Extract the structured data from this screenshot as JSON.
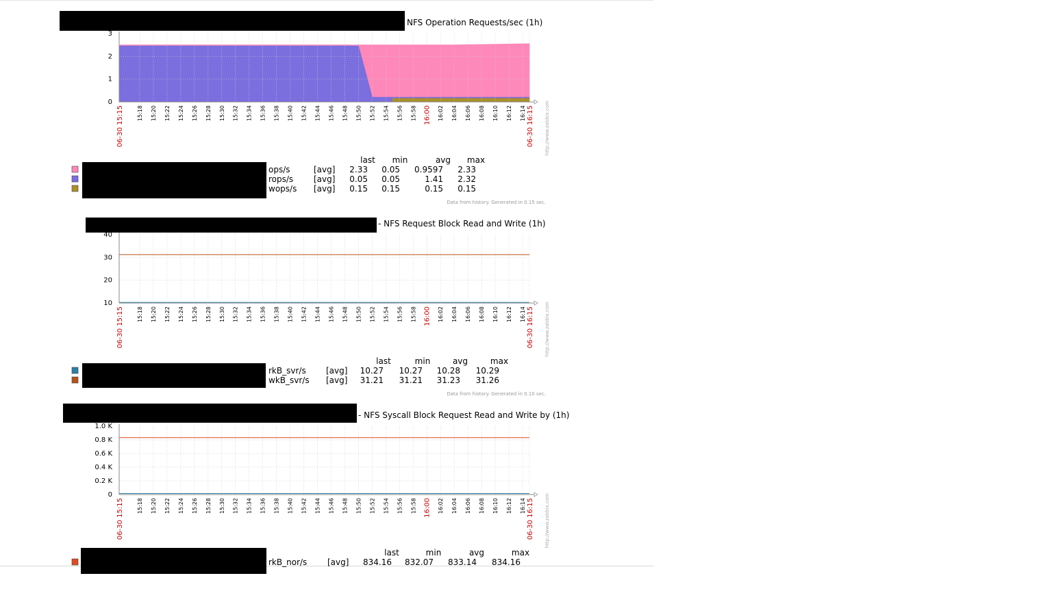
{
  "chart_data": [
    {
      "type": "area",
      "title": "NFS Operation Requests/sec (1h)",
      "ylim": [
        0,
        3
      ],
      "yticks": [
        "0",
        "1",
        "2",
        "3"
      ],
      "x_start": "06-30 15:15",
      "x_end": "06-30 16:15",
      "x_ticks": [
        "15:18",
        "15:20",
        "15:22",
        "15:24",
        "15:26",
        "15:28",
        "15:30",
        "15:32",
        "15:34",
        "15:36",
        "15:38",
        "15:40",
        "15:42",
        "15:44",
        "15:46",
        "15:48",
        "15:50",
        "15:52",
        "15:54",
        "15:56",
        "15:58",
        "16:00",
        "16:02",
        "16:04",
        "16:06",
        "16:08",
        "16:10",
        "16:12",
        "16:14"
      ],
      "x_major": "16:00",
      "grid": true,
      "headers": [
        "last",
        "min",
        "avg",
        "max"
      ],
      "series": [
        {
          "name": "ops/s",
          "func": "[avg]",
          "color": "#ff88bb",
          "last": "2.33",
          "min": "0.05",
          "avg": "0.9597",
          "max": "2.33",
          "points": [
            [
              "15:15",
              2.5
            ],
            [
              "15:50",
              2.5
            ],
            [
              "15:51",
              2.5
            ],
            [
              "15:52",
              2.5
            ],
            [
              "15:58",
              2.5
            ],
            [
              "16:04",
              2.5
            ],
            [
              "16:15",
              2.55
            ]
          ]
        },
        {
          "name": "rops/s",
          "func": "[avg]",
          "color": "#7b6ede",
          "last": "0.05",
          "min": "0.05",
          "avg": "1.41",
          "max": "2.32",
          "points": [
            [
              "15:15",
              2.45
            ],
            [
              "15:50",
              2.45
            ],
            [
              "15:52",
              0.2
            ],
            [
              "16:15",
              0.2
            ]
          ]
        },
        {
          "name": "wops/s",
          "func": "[avg]",
          "color": "#aa8f2a",
          "last": "0.15",
          "min": "0.15",
          "avg": "0.15",
          "max": "0.15",
          "points": [
            [
              "15:15",
              0
            ],
            [
              "15:55",
              0
            ],
            [
              "15:55",
              0.15
            ],
            [
              "16:15",
              0.15
            ]
          ]
        }
      ],
      "footer": "Data from history. Generated in 0.15 sec."
    },
    {
      "type": "line",
      "title": "- NFS  Request Block Read and Write (1h)",
      "ylim": [
        10,
        40
      ],
      "yticks": [
        "10",
        "20",
        "30",
        "40"
      ],
      "x_start": "06-30 15:15",
      "x_end": "06-30 16:15",
      "x_ticks": [
        "15:18",
        "15:20",
        "15:22",
        "15:24",
        "15:26",
        "15:28",
        "15:30",
        "15:32",
        "15:34",
        "15:36",
        "15:38",
        "15:40",
        "15:42",
        "15:44",
        "15:46",
        "15:48",
        "15:50",
        "15:52",
        "15:54",
        "15:56",
        "15:58",
        "16:00",
        "16:02",
        "16:04",
        "16:06",
        "16:08",
        "16:10",
        "16:12",
        "16:14"
      ],
      "x_major": "16:00",
      "grid": true,
      "headers": [
        "last",
        "min",
        "avg",
        "max"
      ],
      "series": [
        {
          "name": "rkB_svr/s",
          "func": "[avg]",
          "color": "#2e7fa6",
          "last": "10.27",
          "min": "10.27",
          "avg": "10.28",
          "max": "10.29",
          "points": [
            [
              "15:15",
              10.28
            ],
            [
              "16:15",
              10.28
            ]
          ]
        },
        {
          "name": "wkB_svr/s",
          "func": "[avg]",
          "color": "#b5521a",
          "last": "31.21",
          "min": "31.21",
          "avg": "31.23",
          "max": "31.26",
          "points": [
            [
              "15:15",
              31.23
            ],
            [
              "16:15",
              31.23
            ]
          ]
        }
      ],
      "footer": "Data from history. Generated in 0.10 sec."
    },
    {
      "type": "line",
      "title": "- NFS Syscall Block Request Read and Write by (1h)",
      "ylim": [
        0,
        1000
      ],
      "yticks": [
        "0",
        "0.2 K",
        "0.4 K",
        "0.6 K",
        "0.8 K",
        "1.0 K"
      ],
      "x_start": "06-30 15:15",
      "x_end": "06-30 16:15",
      "x_ticks": [
        "15:18",
        "15:20",
        "15:22",
        "15:24",
        "15:26",
        "15:28",
        "15:30",
        "15:32",
        "15:34",
        "15:36",
        "15:38",
        "15:40",
        "15:42",
        "15:44",
        "15:46",
        "15:48",
        "15:50",
        "15:52",
        "15:54",
        "15:56",
        "15:58",
        "16:00",
        "16:02",
        "16:04",
        "16:06",
        "16:08",
        "16:10",
        "16:12",
        "16:14"
      ],
      "x_major": "16:00",
      "grid": true,
      "headers": [
        "last",
        "min",
        "avg",
        "max"
      ],
      "series": [
        {
          "name": "rkB_nor/s",
          "func": "[avg]",
          "color": "#e04a20",
          "last": "834.16",
          "min": "832.07",
          "avg": "833.14",
          "max": "834.16",
          "points": [
            [
              "15:15",
              833
            ],
            [
              "16:15",
              833
            ]
          ]
        },
        {
          "color": "#2e7fa6",
          "points": [
            [
              "15:15",
              15
            ],
            [
              "16:15",
              15
            ]
          ]
        }
      ],
      "footer": ""
    }
  ],
  "watermark": "http://www.zabbix.com"
}
